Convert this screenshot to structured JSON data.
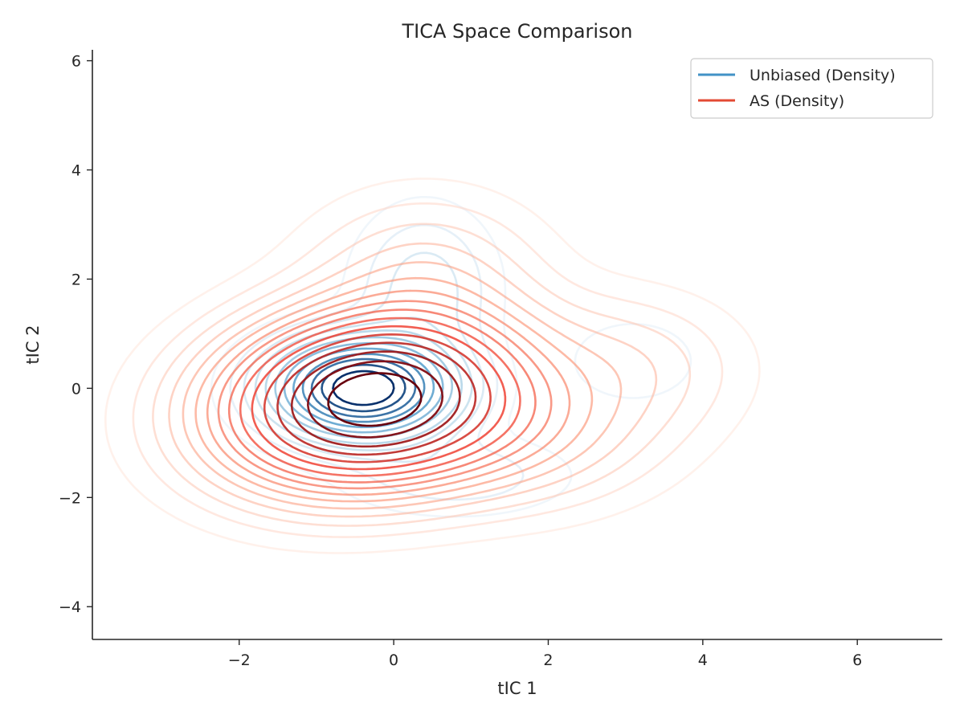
{
  "chart_data": {
    "type": "contour",
    "title": "TICA Space Comparison",
    "xlabel": "tIC 1",
    "ylabel": "tIC 2",
    "xlim": [
      -3.9,
      7.1
    ],
    "ylim": [
      -4.6,
      6.2
    ],
    "x_ticks": [
      -2,
      0,
      2,
      4,
      6
    ],
    "y_ticks": [
      -4,
      -2,
      0,
      2,
      4,
      6
    ],
    "x_tick_labels": [
      "−2",
      "0",
      "2",
      "4",
      "6"
    ],
    "y_tick_labels": [
      "−4",
      "−2",
      "0",
      "2",
      "4",
      "6"
    ],
    "grid": false,
    "legend_position": "top-right",
    "series": [
      {
        "name": "Unbiased (Density)",
        "legend_color": "#4292c6",
        "colormap": [
          "#deebf7",
          "#9ecae1",
          "#4292c6",
          "#08306b"
        ],
        "components": [
          {
            "cx": -0.4,
            "cy": 0.0,
            "sx": 0.7,
            "sy": 0.55,
            "w": 1.0
          },
          {
            "cx": 0.4,
            "cy": 1.8,
            "sx": 0.55,
            "sy": 0.9,
            "w": 0.12
          },
          {
            "cx": 3.1,
            "cy": 0.5,
            "sx": 0.55,
            "sy": 0.5,
            "w": 0.05
          },
          {
            "cx": 0.8,
            "cy": -1.6,
            "sx": 0.9,
            "sy": 0.45,
            "w": 0.08
          }
        ],
        "levels": [
          0.02,
          0.05,
          0.09,
          0.14,
          0.2,
          0.27,
          0.35,
          0.44,
          0.54,
          0.64,
          0.75,
          0.86
        ]
      },
      {
        "name": "AS (Density)",
        "legend_color": "#e34a33",
        "colormap": [
          "#fee0d2",
          "#fc9272",
          "#ef3b2c",
          "#67000d"
        ],
        "components": [
          {
            "cx": -0.3,
            "cy": -0.2,
            "sx": 1.15,
            "sy": 0.9,
            "w": 1.0,
            "rot": -0.3
          },
          {
            "cx": 0.4,
            "cy": 2.0,
            "sx": 0.9,
            "sy": 0.9,
            "w": 0.08
          },
          {
            "cx": 3.0,
            "cy": 0.4,
            "sx": 0.9,
            "sy": 0.8,
            "w": 0.06
          },
          {
            "cx": 1.5,
            "cy": -0.8,
            "sx": 1.1,
            "sy": 0.8,
            "w": 0.12
          }
        ],
        "levels": [
          0.01,
          0.025,
          0.045,
          0.07,
          0.1,
          0.135,
          0.175,
          0.22,
          0.27,
          0.33,
          0.4,
          0.48,
          0.57,
          0.67,
          0.78,
          0.9
        ]
      }
    ]
  }
}
